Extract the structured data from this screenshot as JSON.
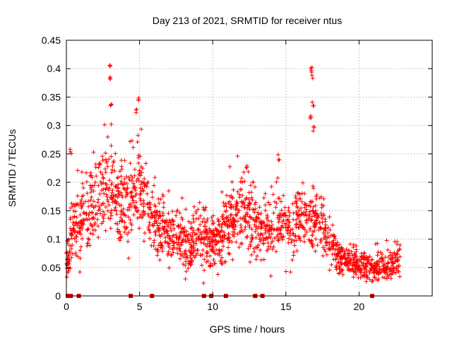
{
  "chart_data": {
    "type": "scatter",
    "title": "Day 213 of 2021, SRMTID for receiver ntus",
    "xlabel": "GPS time / hours",
    "ylabel": "SRMTID / TECUs",
    "xlim": [
      0,
      25
    ],
    "ylim": [
      0,
      0.45
    ],
    "x_ticks": [
      0,
      5,
      10,
      15,
      20
    ],
    "y_ticks": [
      0,
      0.05,
      0.1,
      0.15,
      0.2,
      0.25,
      0.3,
      0.35,
      0.4,
      0.45
    ],
    "x_tick_labels": [
      "0",
      "5",
      "10",
      "15",
      "20"
    ],
    "y_tick_labels": [
      "0",
      "0.05",
      "0.1",
      "0.15",
      "0.2",
      "0.25",
      "0.3",
      "0.35",
      "0.4",
      "0.45"
    ],
    "grid": true,
    "marker": "plus",
    "color": "#ff0000",
    "series_envelope": {
      "description": "Dense scatter of SRMTID values; mean level and spread vs time (hours)",
      "x": [
        0.0,
        0.5,
        1.0,
        1.5,
        2.0,
        2.5,
        3.0,
        3.5,
        4.0,
        4.5,
        5.0,
        5.5,
        6.0,
        6.5,
        7.0,
        7.5,
        8.0,
        8.5,
        9.0,
        9.5,
        10.0,
        10.5,
        11.0,
        11.5,
        12.0,
        12.5,
        13.0,
        13.5,
        14.0,
        14.5,
        15.0,
        15.5,
        16.0,
        16.5,
        17.0,
        17.5,
        18.0,
        18.5,
        19.0,
        19.5,
        20.0,
        20.5,
        21.0,
        21.5,
        22.0,
        22.5,
        22.8
      ],
      "mean": [
        0.06,
        0.12,
        0.13,
        0.15,
        0.17,
        0.18,
        0.2,
        0.17,
        0.16,
        0.16,
        0.2,
        0.17,
        0.13,
        0.12,
        0.11,
        0.1,
        0.09,
        0.09,
        0.1,
        0.1,
        0.09,
        0.1,
        0.12,
        0.14,
        0.15,
        0.14,
        0.12,
        0.11,
        0.12,
        0.14,
        0.13,
        0.12,
        0.13,
        0.14,
        0.14,
        0.12,
        0.09,
        0.07,
        0.06,
        0.06,
        0.055,
        0.05,
        0.045,
        0.05,
        0.05,
        0.06,
        0.07
      ],
      "spread": [
        0.02,
        0.04,
        0.05,
        0.05,
        0.05,
        0.05,
        0.06,
        0.05,
        0.05,
        0.05,
        0.06,
        0.05,
        0.04,
        0.04,
        0.035,
        0.035,
        0.03,
        0.03,
        0.035,
        0.035,
        0.03,
        0.035,
        0.04,
        0.045,
        0.045,
        0.045,
        0.04,
        0.035,
        0.04,
        0.045,
        0.045,
        0.04,
        0.04,
        0.045,
        0.04,
        0.035,
        0.025,
        0.02,
        0.018,
        0.018,
        0.018,
        0.015,
        0.015,
        0.018,
        0.018,
        0.02,
        0.02
      ]
    },
    "peaks": [
      {
        "x": 3.0,
        "y": 0.41
      },
      {
        "x": 2.95,
        "y": 0.39
      },
      {
        "x": 3.05,
        "y": 0.345
      },
      {
        "x": 4.9,
        "y": 0.355
      },
      {
        "x": 4.8,
        "y": 0.33
      },
      {
        "x": 16.75,
        "y": 0.405
      },
      {
        "x": 16.8,
        "y": 0.395
      },
      {
        "x": 16.85,
        "y": 0.345
      },
      {
        "x": 16.7,
        "y": 0.32
      },
      {
        "x": 16.9,
        "y": 0.3
      },
      {
        "x": 0.3,
        "y": 0.26
      },
      {
        "x": 14.5,
        "y": 0.25
      },
      {
        "x": 12.3,
        "y": 0.23
      }
    ],
    "zero_markers_x": [
      0.1,
      0.3,
      0.85,
      4.4,
      5.85,
      9.4,
      9.9,
      10.9,
      12.9,
      13.4,
      20.9
    ]
  }
}
